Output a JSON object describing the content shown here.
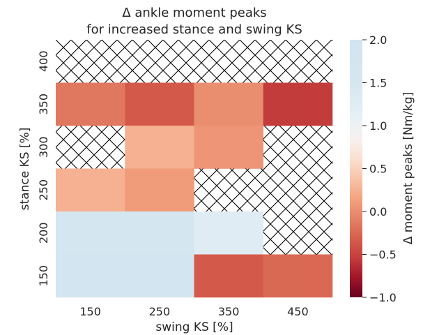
{
  "chart_data": {
    "type": "heatmap",
    "title": [
      "Δ ankle moment peaks",
      "for increased stance and swing KS"
    ],
    "xlabel": "swing KS [%]",
    "ylabel": "stance KS [%]",
    "x_categories": [
      "150",
      "250",
      "350",
      "450"
    ],
    "y_categories": [
      "400",
      "350",
      "300",
      "250",
      "200",
      "150"
    ],
    "values": [
      [
        null,
        null,
        null,
        null
      ],
      [
        -0.15,
        -0.35,
        0.0,
        -0.55
      ],
      [
        null,
        0.25,
        0.05,
        null
      ],
      [
        0.25,
        0.1,
        null,
        null
      ],
      [
        1.6,
        1.65,
        1.25,
        null
      ],
      [
        1.85,
        1.85,
        -0.35,
        -0.25
      ]
    ],
    "missing_pattern": "cross-hatch",
    "colorbar": {
      "label": "Δ moment peaks [Nm/kg]",
      "vmin": -1.0,
      "vmax": 2.0,
      "ticks": [
        "2.0",
        "1.5",
        "1.0",
        "0.5",
        "0.0",
        "−0.5",
        "−1.0"
      ],
      "tick_values": [
        2.0,
        1.5,
        1.0,
        0.5,
        0.0,
        -0.5,
        -1.0
      ],
      "colormap": "RdBu_r"
    }
  }
}
